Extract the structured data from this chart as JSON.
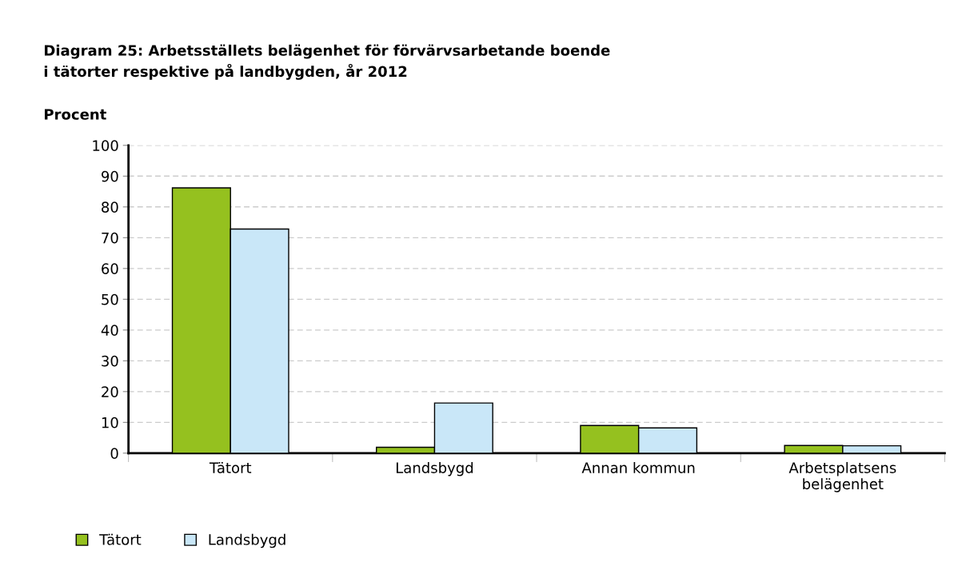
{
  "chart_data": {
    "type": "bar",
    "title": "Diagram 25: Arbetsställets belägenhet för förvärvsarbetande boende\ni tätorter respektive på landbygden, år 2012",
    "ylabel": "Procent",
    "categories": [
      "Tätort",
      "Landsbygd",
      "Annan kommun",
      "Arbetsplatsens\nbelägenhet"
    ],
    "series": [
      {
        "name": "Tätort",
        "color": "#95c11f",
        "values": [
          86.2,
          1.9,
          9.0,
          2.5
        ]
      },
      {
        "name": "Landsbygd",
        "color": "#c9e7f8",
        "values": [
          72.8,
          16.3,
          8.2,
          2.4
        ]
      }
    ],
    "ylim": [
      0,
      100
    ],
    "yticks": [
      0,
      10,
      20,
      30,
      40,
      50,
      60,
      70,
      80,
      90,
      100
    ],
    "grid": "y",
    "legend": "bottom left"
  }
}
